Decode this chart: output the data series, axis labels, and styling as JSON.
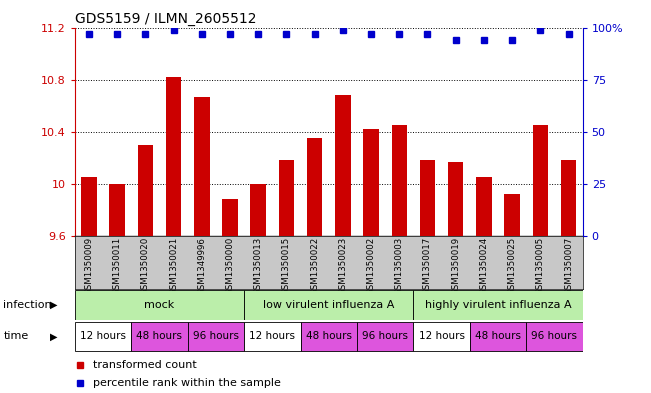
{
  "title": "GDS5159 / ILMN_2605512",
  "samples": [
    "GSM1350009",
    "GSM1350011",
    "GSM1350020",
    "GSM1350021",
    "GSM1349996",
    "GSM1350000",
    "GSM1350013",
    "GSM1350015",
    "GSM1350022",
    "GSM1350023",
    "GSM1350002",
    "GSM1350003",
    "GSM1350017",
    "GSM1350019",
    "GSM1350024",
    "GSM1350025",
    "GSM1350005",
    "GSM1350007"
  ],
  "bar_values": [
    10.05,
    10.0,
    10.3,
    10.82,
    10.67,
    9.88,
    10.0,
    10.18,
    10.35,
    10.68,
    10.42,
    10.45,
    10.18,
    10.17,
    10.05,
    9.92,
    10.45,
    10.18
  ],
  "percentile_values": [
    97,
    97,
    97,
    99,
    97,
    97,
    97,
    97,
    97,
    99,
    97,
    97,
    97,
    94,
    94,
    94,
    99,
    97
  ],
  "ylim_left": [
    9.6,
    11.2
  ],
  "ylim_right": [
    0,
    100
  ],
  "yticks_left": [
    9.6,
    10.0,
    10.4,
    10.8,
    11.2
  ],
  "yticks_right": [
    0,
    25,
    50,
    75,
    100
  ],
  "ytick_labels_left": [
    "9.6",
    "10",
    "10.4",
    "10.8",
    "11.2"
  ],
  "ytick_labels_right": [
    "0",
    "25",
    "50",
    "75",
    "100%"
  ],
  "bar_color": "#cc0000",
  "dot_color": "#0000cc",
  "bg_color": "#ffffff",
  "plot_bg_color": "#ffffff",
  "sample_label_bg": "#c8c8c8",
  "inf_color_mock": "#aaddaa",
  "inf_color_low": "#aaddaa",
  "inf_color_high": "#66cc66",
  "time_color_12": "#ffffff",
  "time_color_48": "#dd55dd",
  "time_color_96": "#dd55dd",
  "inf_labels": [
    "mock",
    "low virulent influenza A",
    "highly virulent influenza A"
  ],
  "time_labels": [
    "12 hours",
    "48 hours",
    "96 hours"
  ]
}
